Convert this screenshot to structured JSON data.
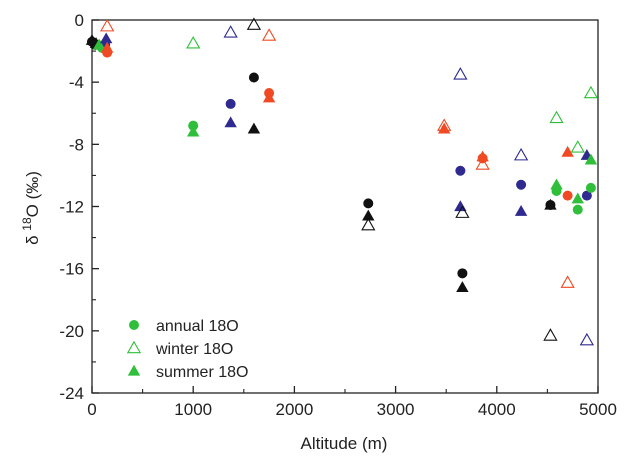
{
  "chart_data": {
    "type": "scatter",
    "xlabel": "Altitude (m)",
    "ylabel": {
      "prefix": "δ ",
      "superscript": "18",
      "suffix": "O (‰)"
    },
    "xlim": [
      0,
      5000
    ],
    "ylim": [
      -24,
      0
    ],
    "x_ticks": [
      0,
      1000,
      2000,
      3000,
      4000,
      5000
    ],
    "y_ticks": [
      0,
      -4,
      -8,
      -12,
      -16,
      -20,
      -24
    ],
    "x_tick_labels": [
      "0",
      "1000",
      "2000",
      "3000",
      "4000",
      "5000"
    ],
    "y_tick_labels": [
      "0",
      "-4",
      "-8",
      "-12",
      "-16",
      "-20",
      "-24"
    ],
    "grid": false,
    "legend_position": "bottom-left",
    "legend": [
      {
        "label": "annual 18O",
        "marker": "circle",
        "color": "#2fbf3a"
      },
      {
        "label": "winter 18O",
        "marker": "triangle-open",
        "color": "#2fbf3a"
      },
      {
        "label": "summer 18O",
        "marker": "triangle",
        "color": "#2fbf3a"
      }
    ],
    "colors": {
      "green": "#2fbf3a",
      "red": "#ef4a23",
      "blue": "#2e2a8f",
      "black": "#111111"
    },
    "points": [
      {
        "x": 0,
        "y": -1.4,
        "marker": "circle",
        "color": "black"
      },
      {
        "x": 30,
        "y": -1.6,
        "marker": "circle",
        "color": "black"
      },
      {
        "x": 60,
        "y": -1.6,
        "marker": "circle",
        "color": "green"
      },
      {
        "x": 100,
        "y": -1.8,
        "marker": "circle",
        "color": "green"
      },
      {
        "x": 130,
        "y": -1.6,
        "marker": "circle",
        "color": "blue"
      },
      {
        "x": 150,
        "y": -2.1,
        "marker": "circle",
        "color": "red"
      },
      {
        "x": 0,
        "y": -1.3,
        "marker": "triangle",
        "color": "black"
      },
      {
        "x": 40,
        "y": -1.5,
        "marker": "triangle",
        "color": "black"
      },
      {
        "x": 70,
        "y": -1.6,
        "marker": "triangle",
        "color": "green"
      },
      {
        "x": 140,
        "y": -1.2,
        "marker": "triangle",
        "color": "blue"
      },
      {
        "x": 150,
        "y": -1.8,
        "marker": "triangle",
        "color": "red"
      },
      {
        "x": 150,
        "y": -0.4,
        "marker": "triangle-open",
        "color": "red"
      },
      {
        "x": 1000,
        "y": -6.8,
        "marker": "circle",
        "color": "green"
      },
      {
        "x": 1000,
        "y": -7.2,
        "marker": "triangle",
        "color": "green"
      },
      {
        "x": 1000,
        "y": -1.5,
        "marker": "triangle-open",
        "color": "green"
      },
      {
        "x": 1370,
        "y": -5.4,
        "marker": "circle",
        "color": "blue"
      },
      {
        "x": 1370,
        "y": -6.6,
        "marker": "triangle",
        "color": "blue"
      },
      {
        "x": 1370,
        "y": -0.8,
        "marker": "triangle-open",
        "color": "blue"
      },
      {
        "x": 1600,
        "y": -3.7,
        "marker": "circle",
        "color": "black"
      },
      {
        "x": 1600,
        "y": -7.0,
        "marker": "triangle",
        "color": "black"
      },
      {
        "x": 1600,
        "y": -0.3,
        "marker": "triangle-open",
        "color": "black"
      },
      {
        "x": 1750,
        "y": -4.7,
        "marker": "circle",
        "color": "red"
      },
      {
        "x": 1750,
        "y": -5.0,
        "marker": "triangle",
        "color": "red"
      },
      {
        "x": 1750,
        "y": -1.0,
        "marker": "triangle-open",
        "color": "red"
      },
      {
        "x": 2730,
        "y": -11.8,
        "marker": "circle",
        "color": "black"
      },
      {
        "x": 2730,
        "y": -12.6,
        "marker": "triangle",
        "color": "black"
      },
      {
        "x": 2730,
        "y": -13.2,
        "marker": "triangle-open",
        "color": "black"
      },
      {
        "x": 3480,
        "y": -6.8,
        "marker": "triangle-open",
        "color": "red"
      },
      {
        "x": 3480,
        "y": -7.0,
        "marker": "triangle",
        "color": "red"
      },
      {
        "x": 3640,
        "y": -9.7,
        "marker": "circle",
        "color": "blue"
      },
      {
        "x": 3640,
        "y": -12.0,
        "marker": "triangle",
        "color": "blue"
      },
      {
        "x": 3640,
        "y": -3.5,
        "marker": "triangle-open",
        "color": "blue"
      },
      {
        "x": 3660,
        "y": -16.3,
        "marker": "circle",
        "color": "black"
      },
      {
        "x": 3660,
        "y": -17.2,
        "marker": "triangle",
        "color": "black"
      },
      {
        "x": 3660,
        "y": -12.4,
        "marker": "triangle-open",
        "color": "black"
      },
      {
        "x": 3860,
        "y": -8.9,
        "marker": "circle",
        "color": "red"
      },
      {
        "x": 3860,
        "y": -8.8,
        "marker": "triangle",
        "color": "red"
      },
      {
        "x": 3860,
        "y": -9.3,
        "marker": "triangle-open",
        "color": "red"
      },
      {
        "x": 4240,
        "y": -10.6,
        "marker": "circle",
        "color": "blue"
      },
      {
        "x": 4240,
        "y": -12.3,
        "marker": "triangle",
        "color": "blue"
      },
      {
        "x": 4240,
        "y": -8.7,
        "marker": "triangle-open",
        "color": "blue"
      },
      {
        "x": 4530,
        "y": -11.9,
        "marker": "circle",
        "color": "black"
      },
      {
        "x": 4530,
        "y": -11.9,
        "marker": "triangle",
        "color": "black"
      },
      {
        "x": 4530,
        "y": -20.3,
        "marker": "triangle-open",
        "color": "black"
      },
      {
        "x": 4590,
        "y": -11.0,
        "marker": "circle",
        "color": "green"
      },
      {
        "x": 4590,
        "y": -10.6,
        "marker": "triangle",
        "color": "green"
      },
      {
        "x": 4590,
        "y": -6.3,
        "marker": "triangle-open",
        "color": "green"
      },
      {
        "x": 4700,
        "y": -11.3,
        "marker": "circle",
        "color": "red"
      },
      {
        "x": 4700,
        "y": -8.5,
        "marker": "triangle",
        "color": "red"
      },
      {
        "x": 4700,
        "y": -16.9,
        "marker": "triangle-open",
        "color": "red"
      },
      {
        "x": 4800,
        "y": -12.2,
        "marker": "circle",
        "color": "green"
      },
      {
        "x": 4800,
        "y": -11.5,
        "marker": "triangle",
        "color": "green"
      },
      {
        "x": 4800,
        "y": -8.2,
        "marker": "triangle-open",
        "color": "green"
      },
      {
        "x": 4890,
        "y": -11.3,
        "marker": "circle",
        "color": "blue"
      },
      {
        "x": 4890,
        "y": -8.7,
        "marker": "triangle",
        "color": "blue"
      },
      {
        "x": 4890,
        "y": -20.6,
        "marker": "triangle-open",
        "color": "blue"
      },
      {
        "x": 4930,
        "y": -10.8,
        "marker": "circle",
        "color": "green"
      },
      {
        "x": 4930,
        "y": -9.0,
        "marker": "triangle",
        "color": "green"
      },
      {
        "x": 4930,
        "y": -4.7,
        "marker": "triangle-open",
        "color": "green"
      }
    ]
  }
}
